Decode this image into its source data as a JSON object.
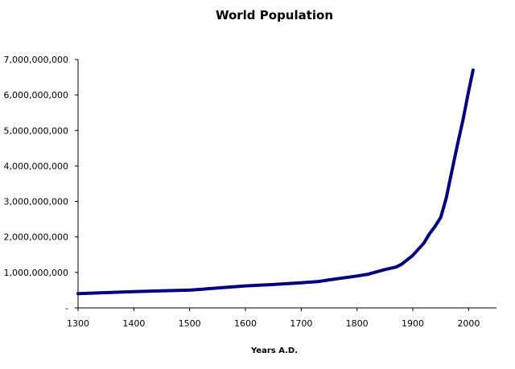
{
  "chart_data": {
    "type": "line",
    "title": "World Population",
    "xlabel": "Years A.D.",
    "ylabel": "",
    "xlim": [
      1300,
      2050
    ],
    "ylim": [
      0,
      7000000000
    ],
    "x_ticks": [
      1300,
      1400,
      1500,
      1600,
      1700,
      1800,
      1900,
      2000
    ],
    "x_tick_labels": [
      "1300",
      "1400",
      "1500",
      "1600",
      "1700",
      "1800",
      "1900",
      "2000"
    ],
    "y_ticks": [
      0,
      1000000000,
      2000000000,
      3000000000,
      4000000000,
      5000000000,
      6000000000,
      7000000000
    ],
    "y_tick_labels": [
      "-",
      "1,000,000,000",
      "2,000,000,000",
      "3,000,000,000",
      "4,000,000,000",
      "5,000,000,000",
      "6,000,000,000",
      "7,000,000,000"
    ],
    "grid": false,
    "legend": "none",
    "line_color": "#000080",
    "series": [
      {
        "x": [
          1300,
          1350,
          1400,
          1450,
          1500,
          1550,
          1600,
          1650,
          1700,
          1730,
          1750,
          1800,
          1820,
          1850,
          1870,
          1880,
          1900,
          1920,
          1930,
          1940,
          1950,
          1960,
          1970,
          1980,
          1990,
          2000,
          2008
        ],
        "y": [
          400000000,
          430000000,
          460000000,
          480000000,
          500000000,
          560000000,
          620000000,
          660000000,
          710000000,
          740000000,
          790000000,
          900000000,
          950000000,
          1080000000,
          1150000000,
          1230000000,
          1480000000,
          1830000000,
          2090000000,
          2300000000,
          2550000000,
          3100000000,
          3850000000,
          4600000000,
          5300000000,
          6100000000,
          6700000000
        ]
      }
    ]
  }
}
